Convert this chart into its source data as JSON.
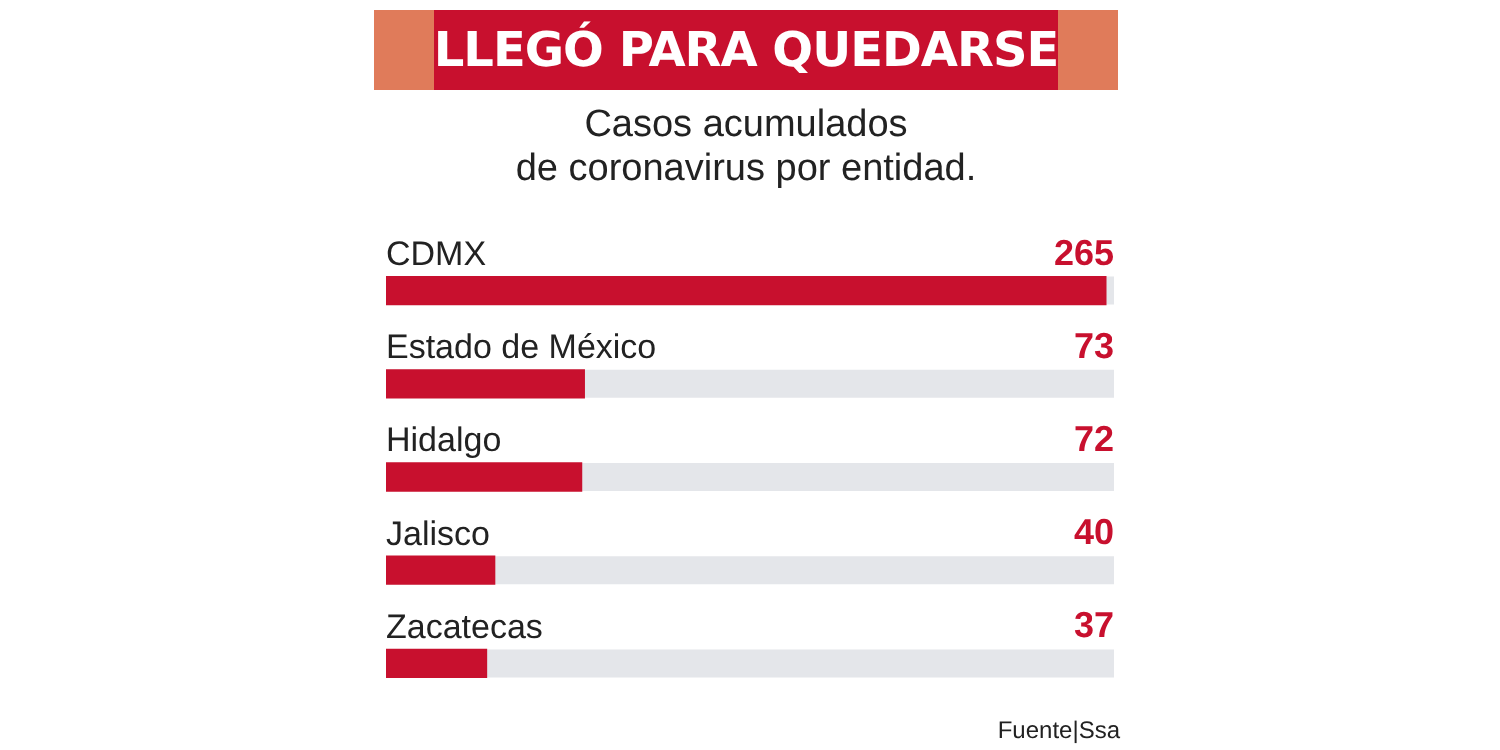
{
  "chart_data": {
    "type": "bar",
    "orientation": "horizontal",
    "title": "LLEGÓ PARA QUEDARSE",
    "subtitle": "Casos acumulados\nde coronavirus por entidad.",
    "categories": [
      "CDMX",
      "Estado de México",
      "Hidalgo",
      "Jalisco",
      "Zacatecas"
    ],
    "values": [
      265,
      73,
      72,
      40,
      37
    ],
    "color": "#c8102e",
    "xlim": [
      0,
      268
    ],
    "data_labels": true,
    "annotations": [
      "Fuente|Ssa"
    ]
  }
}
